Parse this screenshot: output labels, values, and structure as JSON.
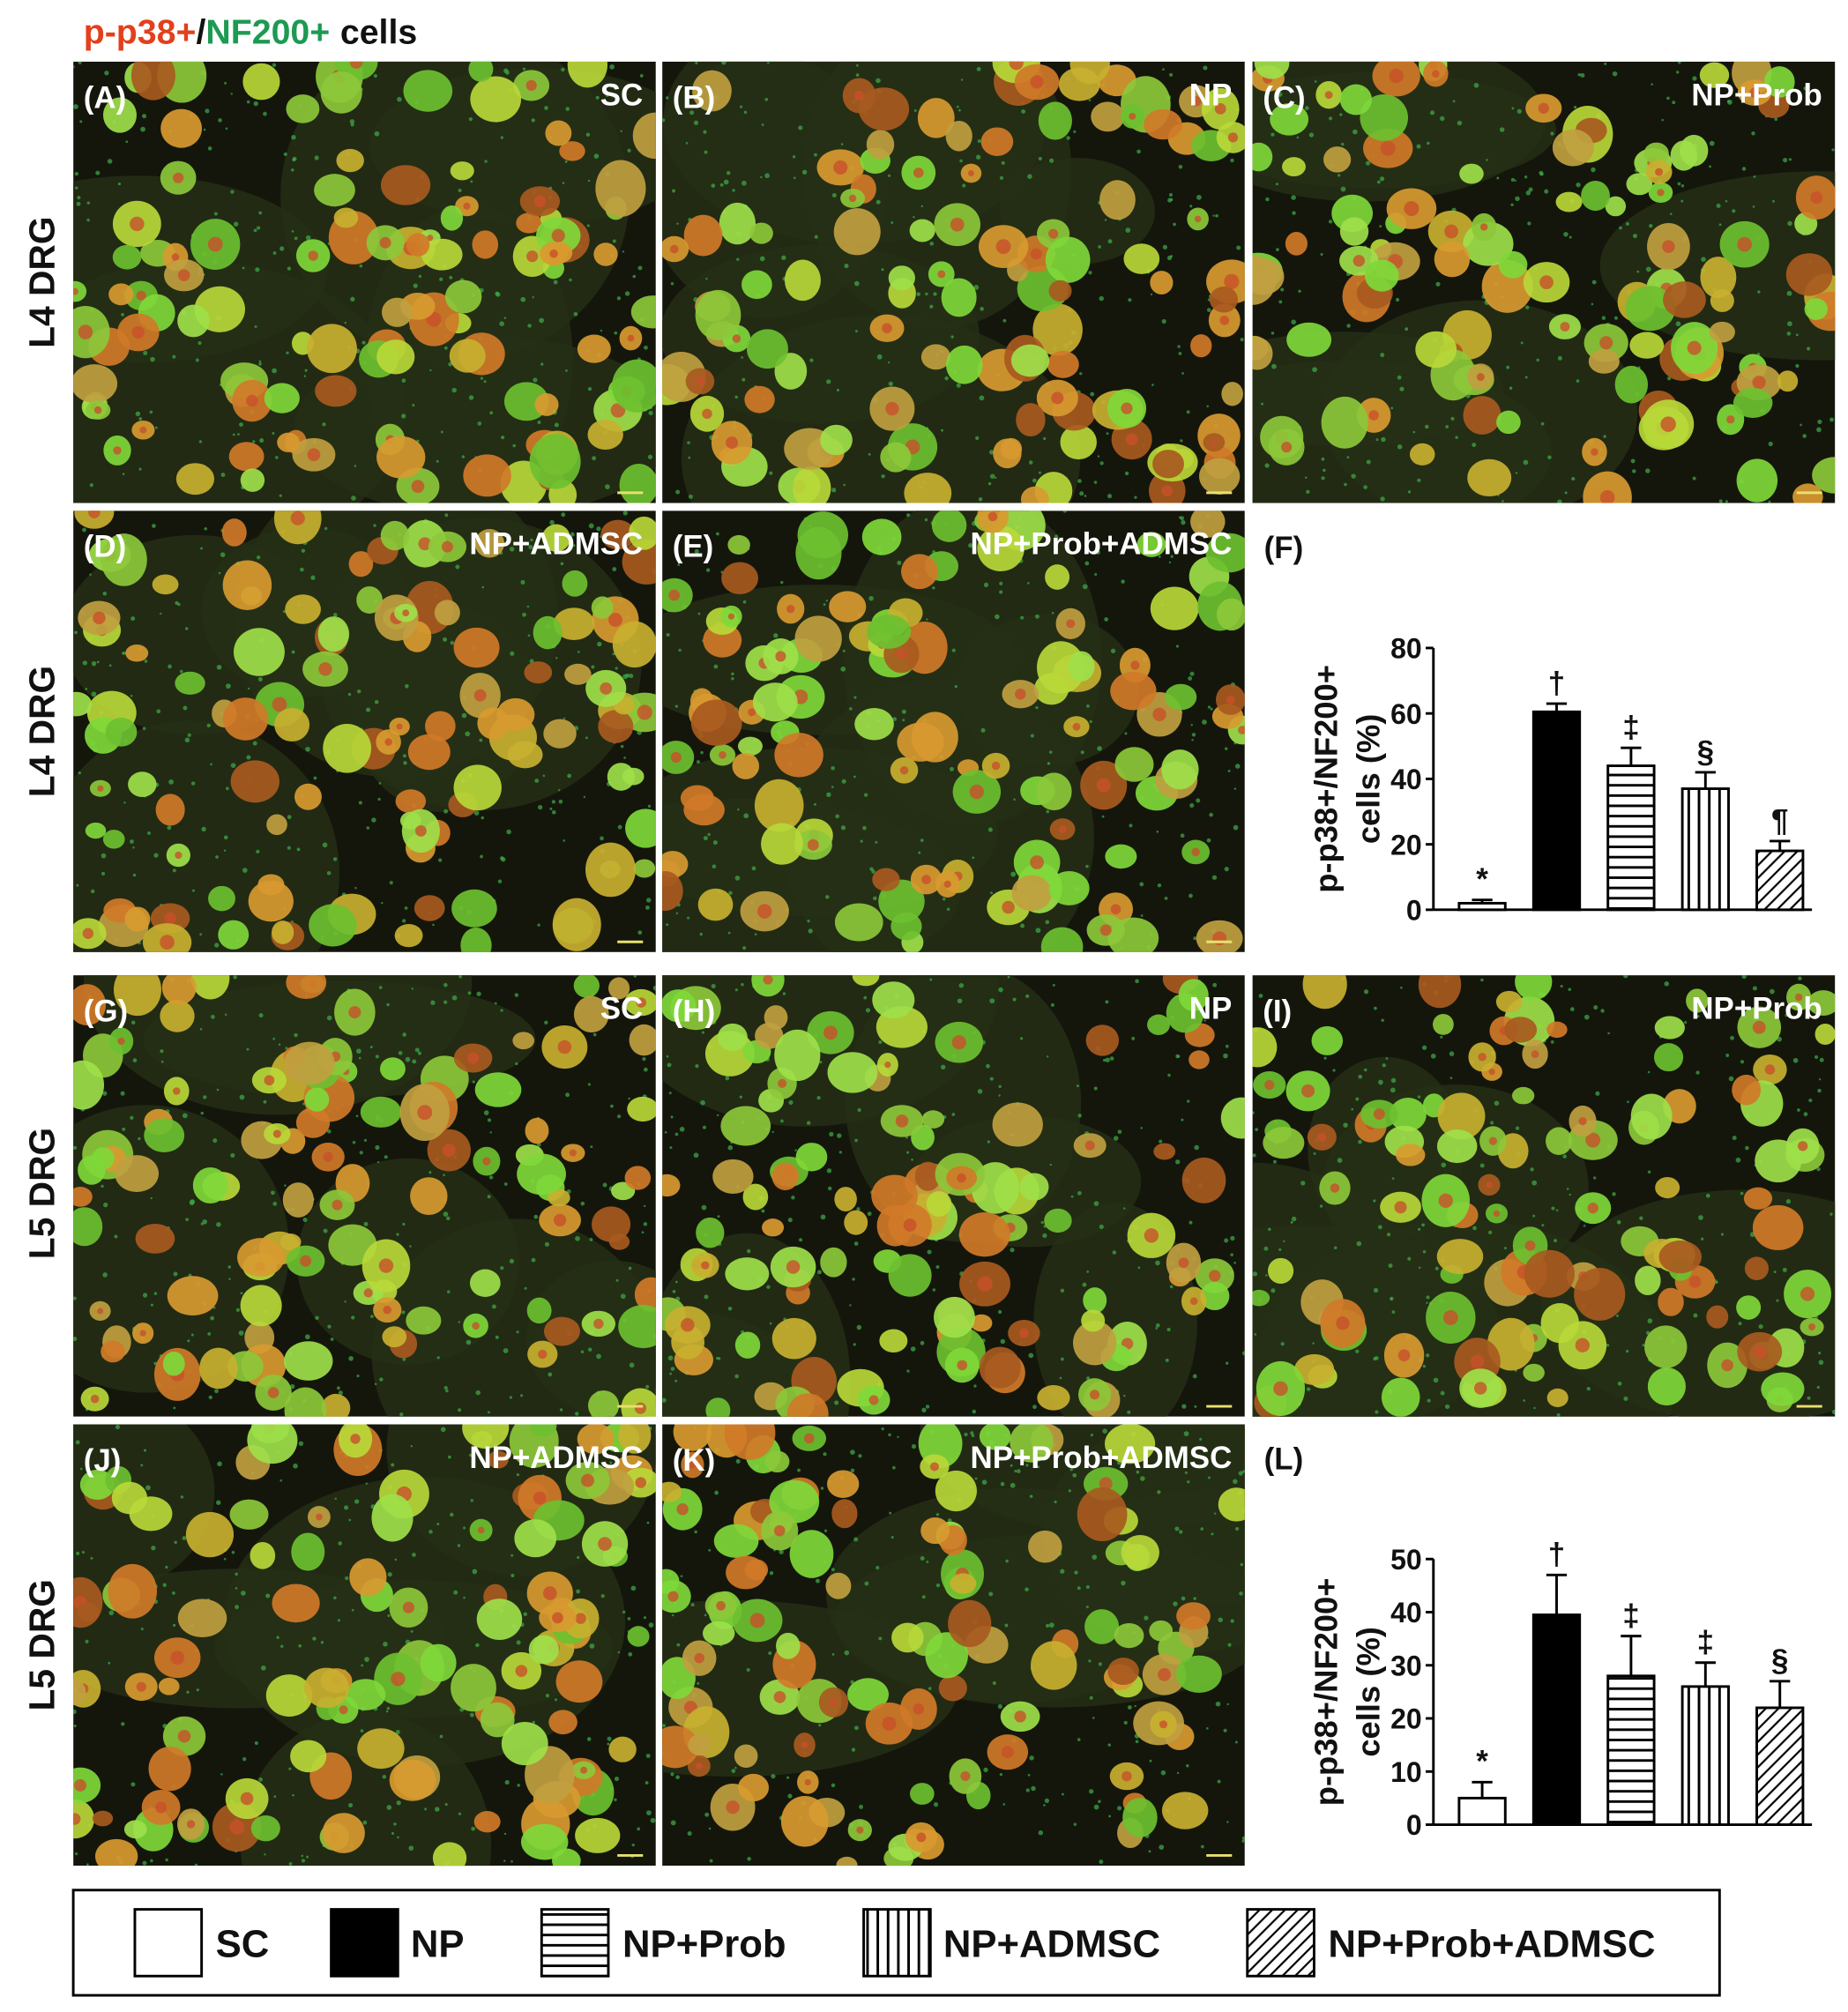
{
  "title": {
    "red": "p-p38+",
    "sep": "/",
    "green": "NF200+",
    "rest": "cells"
  },
  "row_labels": [
    "L4 DRG",
    "L4 DRG",
    "L5 DRG",
    "L5 DRG"
  ],
  "panels": [
    {
      "label": "(A)",
      "group": "SC"
    },
    {
      "label": "(B)",
      "group": "NP"
    },
    {
      "label": "(C)",
      "group": "NP+Prob"
    },
    {
      "label": "(D)",
      "group": "NP+ADMSC"
    },
    {
      "label": "(E)",
      "group": "NP+Prob+ADMSC"
    },
    {
      "label": "(G)",
      "group": "SC"
    },
    {
      "label": "(H)",
      "group": "NP"
    },
    {
      "label": "(I)",
      "group": "NP+Prob"
    },
    {
      "label": "(J)",
      "group": "NP+ADMSC"
    },
    {
      "label": "(K)",
      "group": "NP+Prob+ADMSC"
    }
  ],
  "chart_data": [
    {
      "type": "bar",
      "label": "(F)",
      "ylabel": [
        "p-p38+/NF200+",
        "cells (%)"
      ],
      "categories": [
        "SC",
        "NP",
        "NP+Prob",
        "NP+ADMSC",
        "NP+Prob+ADMSC"
      ],
      "patterns": [
        "white",
        "black",
        "horizontal",
        "vertical",
        "diagonal"
      ],
      "values": [
        2,
        60.5,
        44,
        37,
        18
      ],
      "errors": [
        1,
        2.5,
        5.5,
        5,
        3
      ],
      "annotations": [
        "*",
        "†",
        "‡",
        "§",
        "¶"
      ],
      "ylim": [
        0,
        80
      ],
      "yticks": [
        0,
        20,
        40,
        60,
        80
      ]
    },
    {
      "type": "bar",
      "label": "(L)",
      "ylabel": [
        "p-p38+/NF200+",
        "cells (%)"
      ],
      "categories": [
        "SC",
        "NP",
        "NP+Prob",
        "NP+ADMSC",
        "NP+Prob+ADMSC"
      ],
      "patterns": [
        "white",
        "black",
        "horizontal",
        "vertical",
        "diagonal"
      ],
      "values": [
        5,
        39.5,
        28,
        26,
        22
      ],
      "errors": [
        3,
        7.5,
        7.5,
        4.5,
        5
      ],
      "annotations": [
        "*",
        "†",
        "‡",
        "‡",
        "§"
      ],
      "ylim": [
        0,
        50
      ],
      "yticks": [
        0,
        10,
        20,
        30,
        40,
        50
      ]
    }
  ]
}
